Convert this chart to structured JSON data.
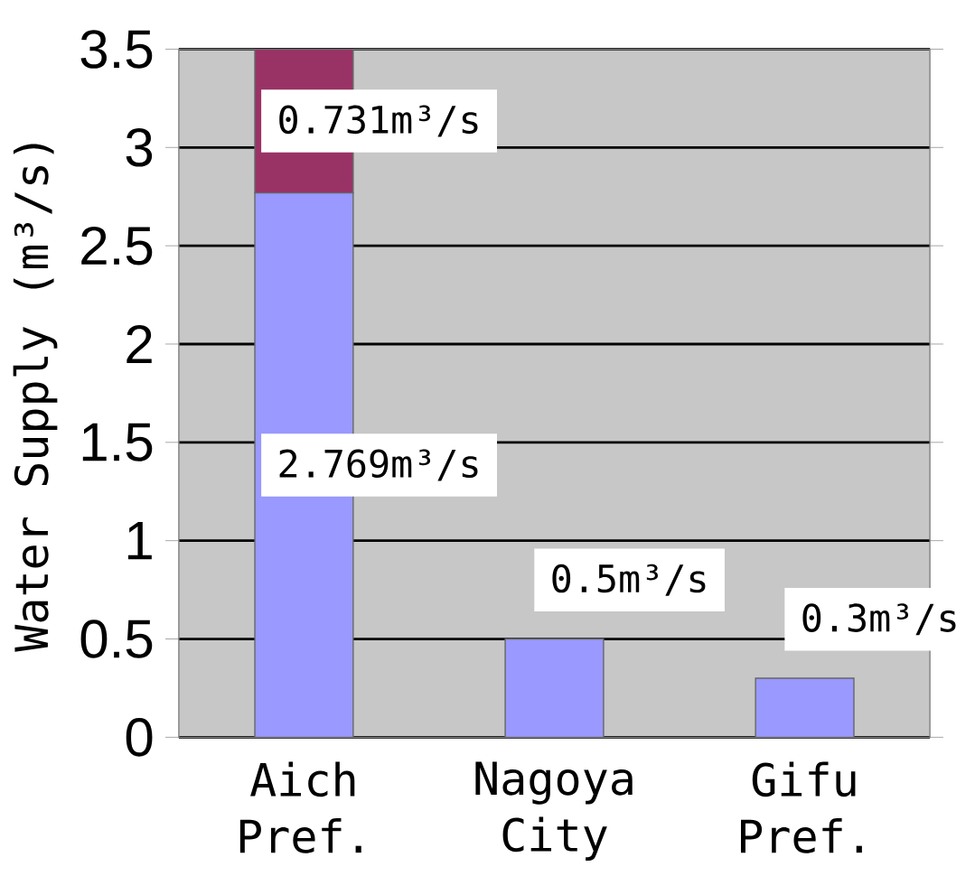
{
  "chart_data": {
    "type": "bar",
    "stacked": true,
    "ylabel": "Water Supply (m³/s)",
    "categories": [
      "Aich Pref.",
      "Nagoya City",
      "Gifu Pref."
    ],
    "series": [
      {
        "color": "#9999ff",
        "values": [
          2.769,
          0.5,
          0.3
        ],
        "value_labels": [
          "2.769m³/s",
          "0.5m³/s",
          "0.3m³/s"
        ]
      },
      {
        "color": "#993366",
        "values": [
          0.731,
          null,
          null
        ],
        "value_labels": [
          "0.731m³/s",
          null,
          null
        ]
      }
    ],
    "ylim": [
      0,
      3.5
    ],
    "yticks": [
      0,
      0.5,
      1,
      1.5,
      2,
      2.5,
      3,
      3.5
    ],
    "grid": "y"
  }
}
